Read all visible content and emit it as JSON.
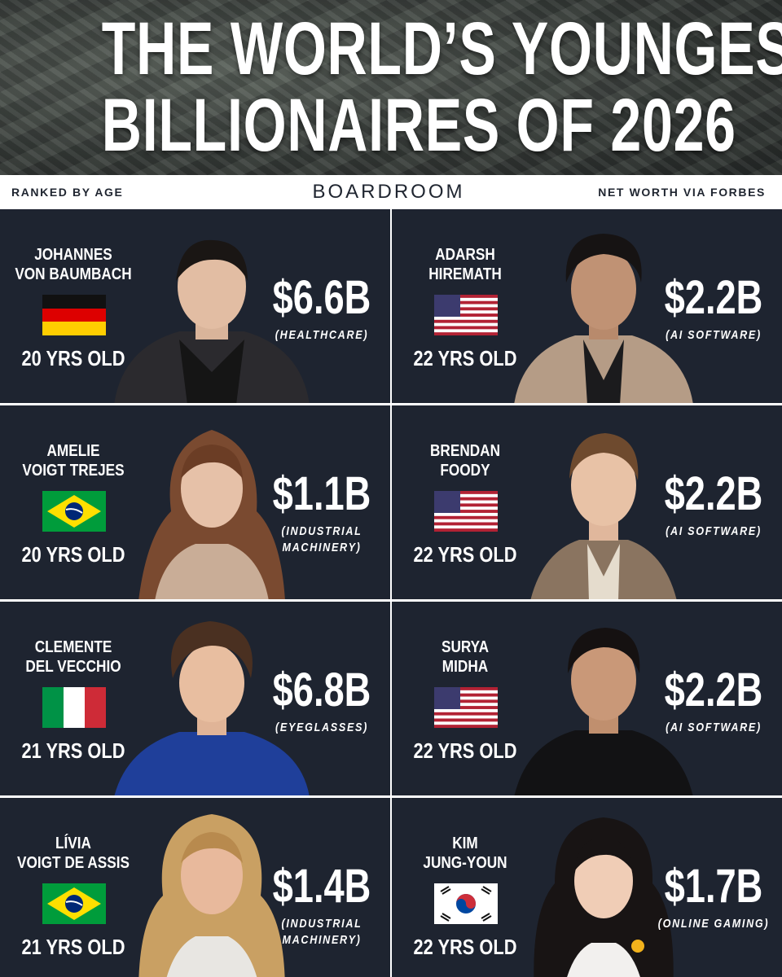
{
  "header": {
    "title_line1": "THE WORLD’S YOUNGEST",
    "title_line2": "BILLIONAIRES OF 2026"
  },
  "subbar": {
    "left": "RANKED BY AGE",
    "brand": "BOARDROOM",
    "right": "NET WORTH VIA FORBES"
  },
  "people": [
    {
      "name_line1": "JOHANNES",
      "name_line2": "VON BAUMBACH",
      "flag": "germany-flag",
      "age": "20 YRS OLD",
      "worth": "$6.6B",
      "sector_line1": "(HEALTHCARE)",
      "sector_line2": ""
    },
    {
      "name_line1": "ADARSH",
      "name_line2": "HIREMATH",
      "flag": "usa-flag",
      "age": "22 YRS OLD",
      "worth": "$2.2B",
      "sector_line1": "(AI SOFTWARE)",
      "sector_line2": ""
    },
    {
      "name_line1": "AMELIE",
      "name_line2": "VOIGT TREJES",
      "flag": "brazil-flag",
      "age": "20 YRS OLD",
      "worth": "$1.1B",
      "sector_line1": "(INDUSTRIAL",
      "sector_line2": "MACHINERY)"
    },
    {
      "name_line1": "BRENDAN",
      "name_line2": "FOODY",
      "flag": "usa-flag",
      "age": "22 YRS OLD",
      "worth": "$2.2B",
      "sector_line1": "(AI SOFTWARE)",
      "sector_line2": ""
    },
    {
      "name_line1": "CLEMENTE",
      "name_line2": "DEL VECCHIO",
      "flag": "italy-flag",
      "age": "21 YRS OLD",
      "worth": "$6.8B",
      "sector_line1": "(EYEGLASSES)",
      "sector_line2": ""
    },
    {
      "name_line1": "SURYA",
      "name_line2": "MIDHA",
      "flag": "usa-flag",
      "age": "22 YRS OLD",
      "worth": "$2.2B",
      "sector_line1": "(AI SOFTWARE)",
      "sector_line2": ""
    },
    {
      "name_line1": "LÍVIA",
      "name_line2": "VOIGT DE ASSIS",
      "flag": "brazil-flag",
      "age": "21 YRS OLD",
      "worth": "$1.4B",
      "sector_line1": "(INDUSTRIAL",
      "sector_line2": "MACHINERY)"
    },
    {
      "name_line1": "KIM",
      "name_line2": "JUNG-YOUN",
      "flag": "south-korea-flag",
      "age": "22 YRS OLD",
      "worth": "$1.7B",
      "sector_line1": "(ONLINE GAMING)",
      "sector_line2": ""
    }
  ],
  "colors": {
    "card_background": "#1e2430",
    "divider": "#ffffff",
    "text": "#ffffff",
    "subbar_background": "#ffffff",
    "subbar_text": "#1f2530"
  }
}
